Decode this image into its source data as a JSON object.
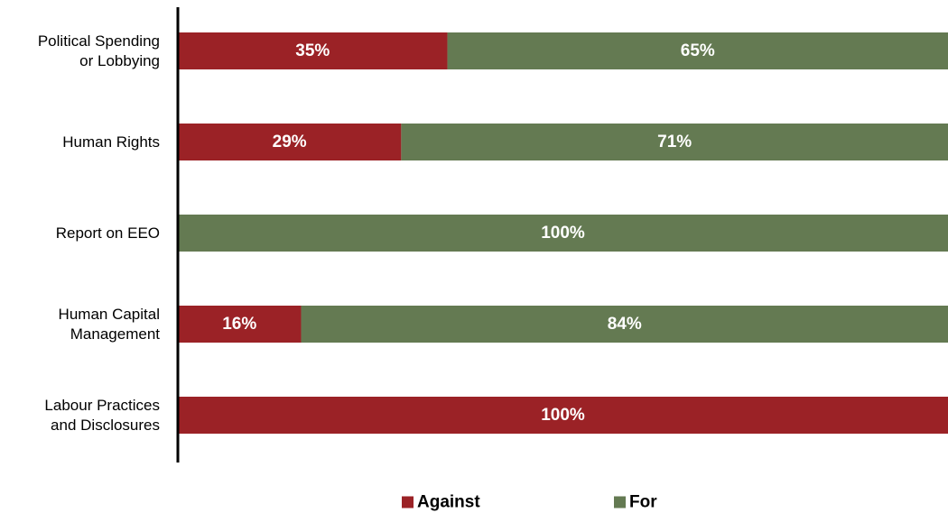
{
  "chart_data": {
    "type": "bar",
    "orientation": "horizontal",
    "stacked": true,
    "value_unit": "%",
    "categories": [
      [
        "Political Spending",
        "or Lobbying"
      ],
      [
        "Human Rights"
      ],
      [
        "Report on EEO"
      ],
      [
        "Human Capital",
        "Management"
      ],
      [
        "Labour Practices",
        "and Disclosures"
      ]
    ],
    "series": [
      {
        "name": "Against",
        "color": "#9b2226",
        "values": [
          35,
          29,
          0,
          16,
          100
        ]
      },
      {
        "name": "For",
        "color": "#647a52",
        "values": [
          65,
          71,
          100,
          84,
          0
        ]
      }
    ],
    "xlim": [
      0,
      100
    ],
    "grid": false,
    "legend_position": "bottom",
    "title": "",
    "xlabel": "",
    "ylabel": ""
  }
}
